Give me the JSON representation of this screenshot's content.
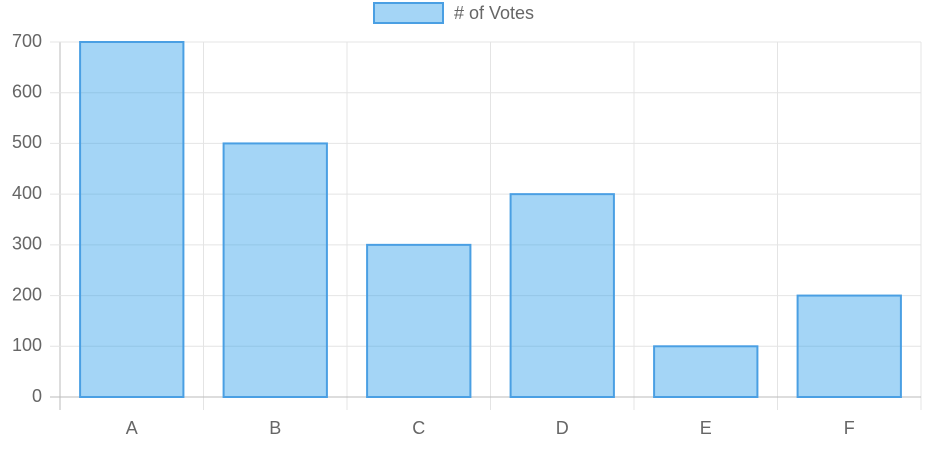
{
  "chart_data": {
    "type": "bar",
    "categories": [
      "A",
      "B",
      "C",
      "D",
      "E",
      "F"
    ],
    "series": [
      {
        "name": "# of Votes",
        "color": "rgba(54, 162, 235, 0.45)",
        "border_color": "rgb(74, 159, 227)",
        "values": [
          700,
          500,
          300,
          400,
          100,
          200
        ]
      }
    ],
    "ylim": [
      0,
      700
    ],
    "yticks": [
      0,
      100,
      200,
      300,
      400,
      500,
      600,
      700
    ],
    "grid": true,
    "legend": "top"
  }
}
